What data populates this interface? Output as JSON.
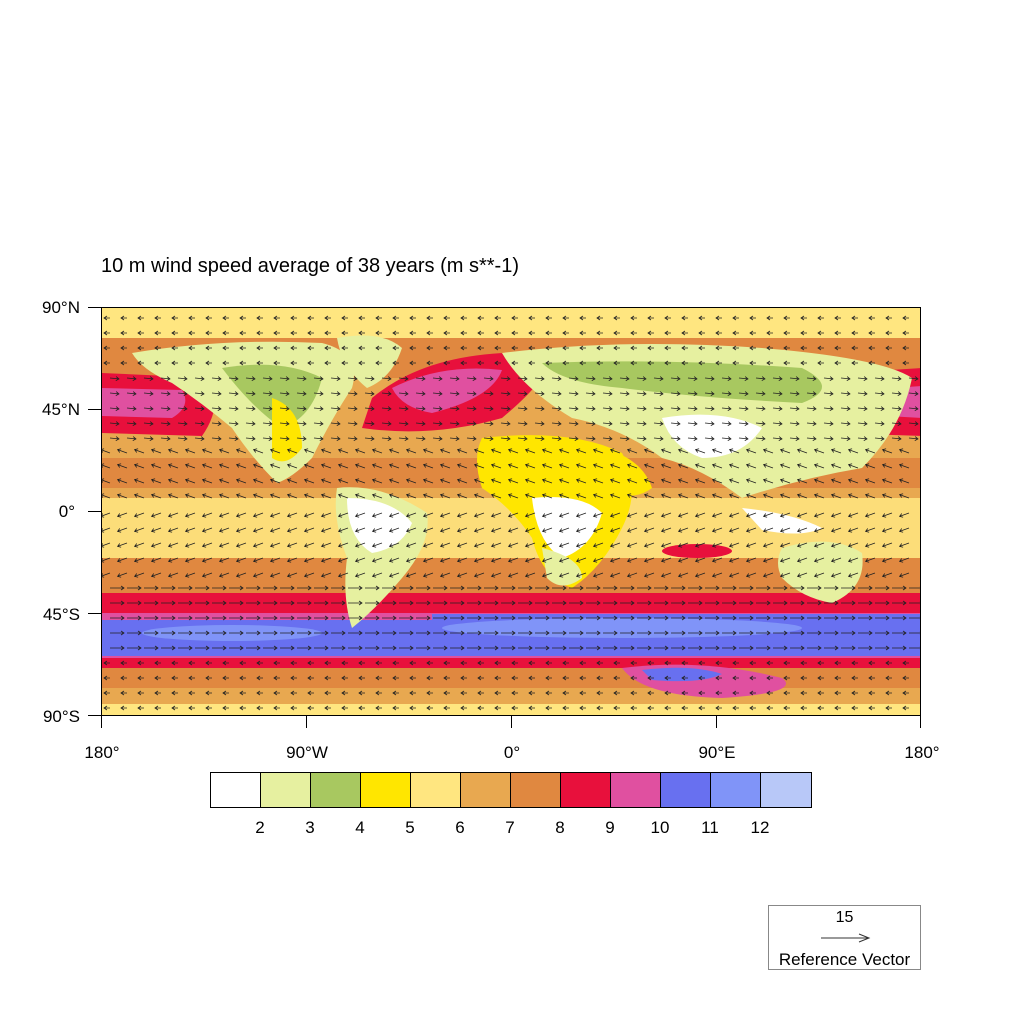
{
  "title": "10 m wind speed average of 38 years  (m s**-1)",
  "axes": {
    "y_labels": [
      "90°N",
      "45°N",
      "0°",
      "45°S",
      "90°S"
    ],
    "x_labels": [
      "180°",
      "90°W",
      "0°",
      "90°E",
      "180°"
    ],
    "lon_range": [
      -180,
      180
    ],
    "lat_range": [
      -90,
      90
    ]
  },
  "colorbar": {
    "colors": [
      "#ffffff",
      "#e6f0a0",
      "#a8c860",
      "#ffe600",
      "#ffe680",
      "#e8a850",
      "#e08840",
      "#e8103c",
      "#e050a0",
      "#6870f0",
      "#8094f8",
      "#b8c8f8"
    ],
    "labels": [
      "2",
      "3",
      "4",
      "5",
      "6",
      "7",
      "8",
      "9",
      "10",
      "11",
      "12"
    ]
  },
  "reference_vector": {
    "magnitude": "15",
    "label": "Reference Vector"
  }
}
